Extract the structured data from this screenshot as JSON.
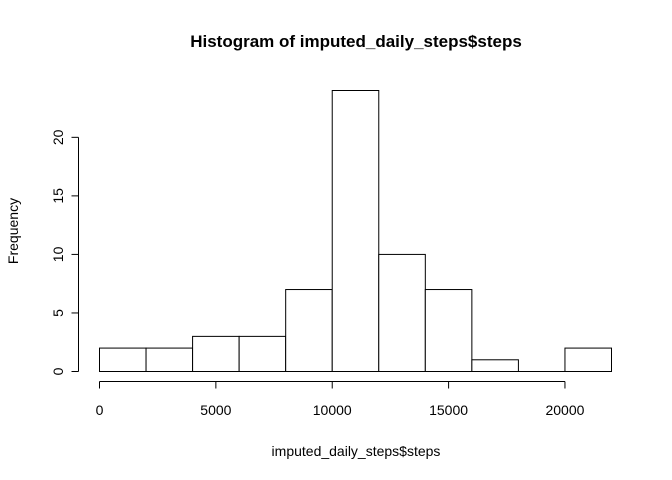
{
  "chart_data": {
    "type": "bar",
    "title": "Histogram of imputed_daily_steps$steps",
    "xlabel": "imputed_daily_steps$steps",
    "ylabel": "Frequency",
    "bins": [
      {
        "from": 0,
        "to": 2000,
        "count": 2
      },
      {
        "from": 2000,
        "to": 4000,
        "count": 2
      },
      {
        "from": 4000,
        "to": 6000,
        "count": 3
      },
      {
        "from": 6000,
        "to": 8000,
        "count": 3
      },
      {
        "from": 8000,
        "to": 10000,
        "count": 7
      },
      {
        "from": 10000,
        "to": 12000,
        "count": 24
      },
      {
        "from": 12000,
        "to": 14000,
        "count": 10
      },
      {
        "from": 14000,
        "to": 16000,
        "count": 7
      },
      {
        "from": 16000,
        "to": 18000,
        "count": 1
      },
      {
        "from": 18000,
        "to": 20000,
        "count": 0
      },
      {
        "from": 20000,
        "to": 22000,
        "count": 2
      }
    ],
    "xlim": [
      0,
      22000
    ],
    "ylim": [
      0,
      24
    ],
    "x_ticks": [
      {
        "value": 0,
        "label": "0"
      },
      {
        "value": 5000,
        "label": "5000"
      },
      {
        "value": 10000,
        "label": "10000"
      },
      {
        "value": 15000,
        "label": "15000"
      },
      {
        "value": 20000,
        "label": "20000"
      }
    ],
    "y_ticks": [
      {
        "value": 0,
        "label": "0"
      },
      {
        "value": 5,
        "label": "5"
      },
      {
        "value": 10,
        "label": "10"
      },
      {
        "value": 15,
        "label": "15"
      },
      {
        "value": 20,
        "label": "20"
      }
    ],
    "grid": false,
    "legend": "none",
    "bar_fill": "#ffffff",
    "bar_stroke": "#000000"
  }
}
